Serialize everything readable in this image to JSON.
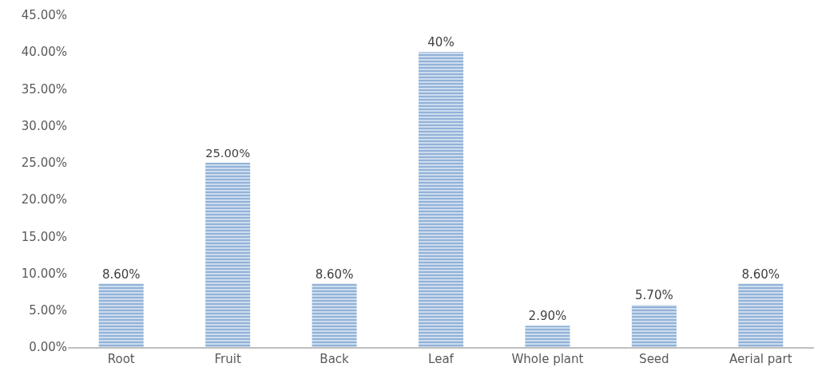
{
  "chart_data": {
    "type": "bar",
    "categories": [
      "Root",
      "Fruit",
      "Back",
      "Leaf",
      "Whole plant",
      "Seed",
      "Aerial part"
    ],
    "values": [
      8.6,
      25,
      8.6,
      40,
      2.9,
      5.7,
      8.6
    ],
    "value_labels": [
      "8.60%",
      "25.00%",
      "8.60%",
      "40%",
      "2.90%",
      "5.70%",
      "8.60%"
    ],
    "color": "#4a7ebb",
    "ylim": [
      0,
      45
    ],
    "yticks": [
      {
        "value": 0,
        "label": "0.00%"
      },
      {
        "value": 5,
        "label": "5.00%"
      },
      {
        "value": 10,
        "label": "10.00%"
      },
      {
        "value": 15,
        "label": "15.00%"
      },
      {
        "value": 20,
        "label": "20.00%"
      },
      {
        "value": 25,
        "label": "25.00%"
      },
      {
        "value": 30,
        "label": "30.00%"
      },
      {
        "value": 35,
        "label": "35.00%"
      },
      {
        "value": 40,
        "label": "40.00%"
      },
      {
        "value": 45,
        "label": "45.00%"
      }
    ],
    "grid": false,
    "legend": false
  }
}
